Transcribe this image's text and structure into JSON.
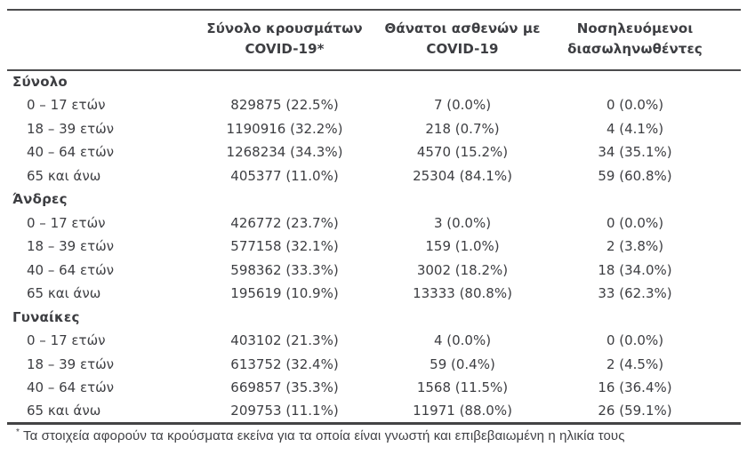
{
  "table": {
    "columns": [
      {
        "line1": "Σύνολο κρουσμάτων",
        "line2": "COVID-19*"
      },
      {
        "line1": "Θάνατοι ασθενών με",
        "line2": "COVID-19"
      },
      {
        "line1": "Νοσηλευόμενοι",
        "line2": "διασωληνωθέντες"
      }
    ],
    "groups": [
      {
        "label": "Σύνολο",
        "rows": [
          {
            "label": "0 – 17 ετών",
            "cases": "829875 (22.5%)",
            "deaths": "7 (0.0%)",
            "intubated": "0 (0.0%)"
          },
          {
            "label": "18 – 39 ετών",
            "cases": "1190916 (32.2%)",
            "deaths": "218 (0.7%)",
            "intubated": "4 (4.1%)"
          },
          {
            "label": "40 – 64 ετών",
            "cases": "1268234 (34.3%)",
            "deaths": "4570 (15.2%)",
            "intubated": "34 (35.1%)"
          },
          {
            "label": "65 και άνω",
            "cases": "405377 (11.0%)",
            "deaths": "25304 (84.1%)",
            "intubated": "59 (60.8%)"
          }
        ]
      },
      {
        "label": "Άνδρες",
        "rows": [
          {
            "label": "0 – 17 ετών",
            "cases": "426772 (23.7%)",
            "deaths": "3 (0.0%)",
            "intubated": "0 (0.0%)"
          },
          {
            "label": "18 – 39 ετών",
            "cases": "577158 (32.1%)",
            "deaths": "159 (1.0%)",
            "intubated": "2 (3.8%)"
          },
          {
            "label": "40 – 64 ετών",
            "cases": "598362 (33.3%)",
            "deaths": "3002 (18.2%)",
            "intubated": "18 (34.0%)"
          },
          {
            "label": "65 και άνω",
            "cases": "195619 (10.9%)",
            "deaths": "13333 (80.8%)",
            "intubated": "33 (62.3%)"
          }
        ]
      },
      {
        "label": "Γυναίκες",
        "rows": [
          {
            "label": "0 – 17 ετών",
            "cases": "403102 (21.3%)",
            "deaths": "4 (0.0%)",
            "intubated": "0 (0.0%)"
          },
          {
            "label": "18 – 39 ετών",
            "cases": "613752 (32.4%)",
            "deaths": "59 (0.4%)",
            "intubated": "2 (4.5%)"
          },
          {
            "label": "40 – 64 ετών",
            "cases": "669857 (35.3%)",
            "deaths": "1568 (11.5%)",
            "intubated": "16 (36.4%)"
          },
          {
            "label": "65 και άνω",
            "cases": "209753 (11.1%)",
            "deaths": "11971 (88.0%)",
            "intubated": "26 (59.1%)"
          }
        ]
      }
    ]
  },
  "footnote": {
    "marker": "*",
    "text": "Τα στοιχεία αφορούν τα κρούσματα εκείνα για τα οποία είναι γνωστή και επιβεβαιωμένη η ηλικία τους"
  }
}
